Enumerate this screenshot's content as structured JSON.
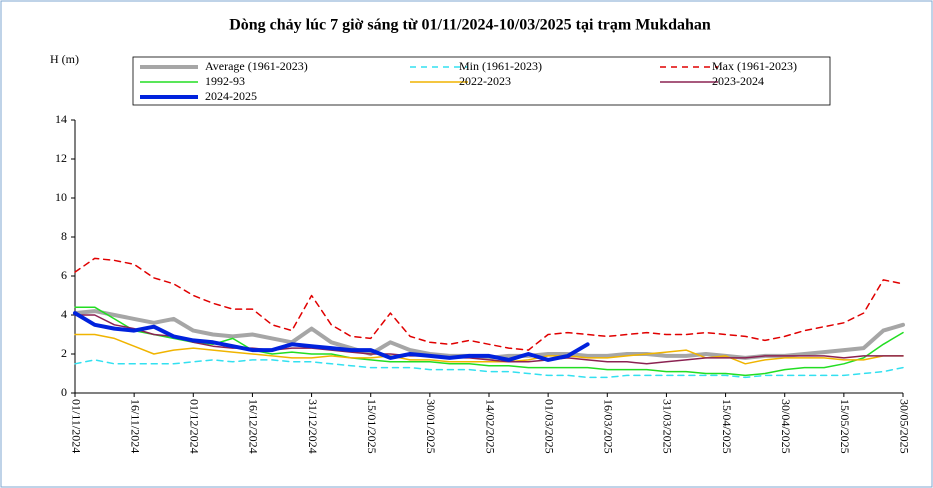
{
  "chart_data": {
    "type": "line",
    "title": "Dòng chảy lúc 7 giờ sáng từ 01/11/2024-10/03/2025 tại trạm Mukdahan",
    "y_label": "H (m)",
    "categories": [
      "01/11/2024",
      null,
      null,
      "16/11/2024",
      null,
      null,
      "01/12/2024",
      null,
      null,
      "16/12/2024",
      null,
      null,
      "31/12/2024",
      null,
      null,
      "15/01/2025",
      null,
      null,
      "30/01/2025",
      null,
      null,
      "14/02/2025",
      null,
      null,
      "01/03/2025",
      null,
      null,
      "16/03/2025",
      null,
      null,
      "31/03/2025",
      null,
      null,
      "15/04/2025",
      null,
      null,
      "30/04/2025",
      null,
      null,
      "15/05/2025",
      null,
      null,
      "30/05/2025"
    ],
    "ylim": [
      0,
      14
    ],
    "yticks": [
      0,
      2,
      4,
      6,
      8,
      10,
      12,
      14
    ],
    "series": [
      {
        "name": "Average (1961-2023)",
        "color": "#a6a6a6",
        "line_width": 4,
        "dash": false,
        "values": [
          4.1,
          4.2,
          4.0,
          3.8,
          3.6,
          3.8,
          3.2,
          3.0,
          2.9,
          3.0,
          2.8,
          2.6,
          3.3,
          2.6,
          2.3,
          2.0,
          2.6,
          2.2,
          2.0,
          1.9,
          1.9,
          1.8,
          1.9,
          1.9,
          2.0,
          2.0,
          1.9,
          1.9,
          2.0,
          2.0,
          1.9,
          1.9,
          2.0,
          1.9,
          1.8,
          1.9,
          1.9,
          2.0,
          2.1,
          2.2,
          2.3,
          3.2,
          3.5
        ]
      },
      {
        "name": "Min (1961-2023)",
        "color": "#33e0f0",
        "line_width": 1.5,
        "dash": true,
        "values": [
          1.5,
          1.7,
          1.5,
          1.5,
          1.5,
          1.5,
          1.6,
          1.7,
          1.6,
          1.7,
          1.7,
          1.6,
          1.6,
          1.5,
          1.4,
          1.3,
          1.3,
          1.3,
          1.2,
          1.2,
          1.2,
          1.1,
          1.1,
          1.0,
          0.9,
          0.9,
          0.8,
          0.8,
          0.9,
          0.9,
          0.9,
          0.9,
          0.9,
          0.9,
          0.8,
          0.9,
          0.9,
          0.9,
          0.9,
          0.9,
          1.0,
          1.1,
          1.3
        ]
      },
      {
        "name": "Max (1961-2023)",
        "color": "#e00000",
        "line_width": 1.5,
        "dash": true,
        "values": [
          6.2,
          6.9,
          6.8,
          6.6,
          5.9,
          5.6,
          5.0,
          4.6,
          4.3,
          4.3,
          3.5,
          3.2,
          5.0,
          3.5,
          2.9,
          2.8,
          4.1,
          2.9,
          2.6,
          2.5,
          2.7,
          2.5,
          2.3,
          2.2,
          3.0,
          3.1,
          3.0,
          2.9,
          3.0,
          3.1,
          3.0,
          3.0,
          3.1,
          3.0,
          2.9,
          2.7,
          2.9,
          3.2,
          3.4,
          3.6,
          4.1,
          5.8,
          5.6
        ]
      },
      {
        "name": "1992-93",
        "color": "#22dd22",
        "line_width": 1.5,
        "dash": false,
        "values": [
          4.4,
          4.4,
          3.8,
          3.2,
          3.0,
          2.8,
          2.6,
          2.5,
          2.8,
          2.2,
          2.0,
          2.1,
          2.0,
          2.0,
          1.8,
          1.7,
          1.6,
          1.6,
          1.6,
          1.5,
          1.5,
          1.4,
          1.4,
          1.3,
          1.3,
          1.3,
          1.3,
          1.2,
          1.2,
          1.2,
          1.1,
          1.1,
          1.0,
          1.0,
          0.9,
          1.0,
          1.2,
          1.3,
          1.3,
          1.5,
          1.8,
          2.5,
          3.1
        ]
      },
      {
        "name": "2022-2023",
        "color": "#f0b400",
        "line_width": 1.5,
        "dash": false,
        "values": [
          3.0,
          3.0,
          2.8,
          2.4,
          2.0,
          2.2,
          2.3,
          2.2,
          2.1,
          2.0,
          1.9,
          1.8,
          1.8,
          1.9,
          1.8,
          1.8,
          1.9,
          1.7,
          1.7,
          1.6,
          1.6,
          1.6,
          1.6,
          1.7,
          1.9,
          1.9,
          1.8,
          1.8,
          1.9,
          2.0,
          2.1,
          2.2,
          1.8,
          1.9,
          1.5,
          1.7,
          1.8,
          1.8,
          1.8,
          1.7,
          1.7,
          1.9,
          1.9
        ]
      },
      {
        "name": "2023-2024",
        "color": "#8b2252",
        "line_width": 1.5,
        "dash": false,
        "values": [
          4.0,
          4.0,
          3.5,
          3.3,
          3.0,
          2.9,
          2.6,
          2.4,
          2.3,
          2.3,
          2.2,
          2.3,
          2.3,
          2.2,
          2.1,
          2.0,
          2.0,
          1.9,
          1.9,
          1.8,
          1.8,
          1.7,
          1.6,
          1.6,
          1.7,
          1.8,
          1.7,
          1.6,
          1.6,
          1.5,
          1.6,
          1.7,
          1.8,
          1.8,
          1.8,
          1.9,
          1.9,
          1.9,
          1.9,
          1.8,
          1.9,
          1.9,
          1.9
        ]
      },
      {
        "name": "2024-2025",
        "color": "#0022dd",
        "line_width": 4,
        "dash": false,
        "values": [
          4.1,
          3.5,
          3.3,
          3.2,
          3.4,
          2.9,
          2.7,
          2.6,
          2.4,
          2.2,
          2.2,
          2.5,
          2.4,
          2.3,
          2.2,
          2.2,
          1.8,
          2.0,
          1.9,
          1.8,
          1.9,
          1.9,
          1.7,
          2.0,
          1.7,
          1.9,
          2.5,
          null,
          null,
          null,
          null,
          null,
          null,
          null,
          null,
          null,
          null,
          null,
          null,
          null,
          null,
          null,
          null
        ]
      }
    ]
  }
}
